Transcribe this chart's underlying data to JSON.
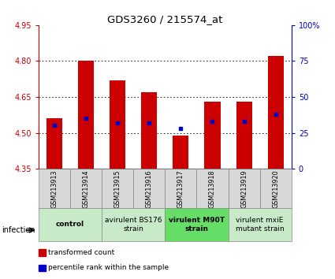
{
  "title": "GDS3260 / 215574_at",
  "samples": [
    "GSM213913",
    "GSM213914",
    "GSM213915",
    "GSM213916",
    "GSM213917",
    "GSM213918",
    "GSM213919",
    "GSM213920"
  ],
  "transformed_counts": [
    4.56,
    4.8,
    4.72,
    4.67,
    4.49,
    4.63,
    4.63,
    4.82
  ],
  "percentile_ranks": [
    30,
    35,
    32,
    32,
    28,
    33,
    33,
    38
  ],
  "bar_bottom": 4.35,
  "ylim_left": [
    4.35,
    4.95
  ],
  "ylim_right": [
    0,
    100
  ],
  "yticks_left": [
    4.35,
    4.5,
    4.65,
    4.8,
    4.95
  ],
  "yticks_right": [
    0,
    25,
    50,
    75,
    100
  ],
  "ytick_labels_right": [
    "0",
    "25",
    "50",
    "75",
    "100%"
  ],
  "bar_color": "#cc0000",
  "percentile_color": "#0000cc",
  "groups": [
    {
      "label": "control",
      "spans": [
        0,
        2
      ],
      "color": "#c8eac8",
      "bold": true
    },
    {
      "label": "avirulent BS176\nstrain",
      "spans": [
        2,
        4
      ],
      "color": "#c8eac8",
      "bold": false
    },
    {
      "label": "virulent M90T\nstrain",
      "spans": [
        4,
        6
      ],
      "color": "#66dd66",
      "bold": true
    },
    {
      "label": "virulent mxiE\nmutant strain",
      "spans": [
        6,
        8
      ],
      "color": "#c8eac8",
      "bold": false
    }
  ],
  "infection_label": "infection",
  "legend_items": [
    {
      "color": "#cc0000",
      "label": "transformed count"
    },
    {
      "color": "#0000cc",
      "label": "percentile rank within the sample"
    }
  ],
  "bar_width": 0.5,
  "sample_box_color": "#d8d8d8"
}
